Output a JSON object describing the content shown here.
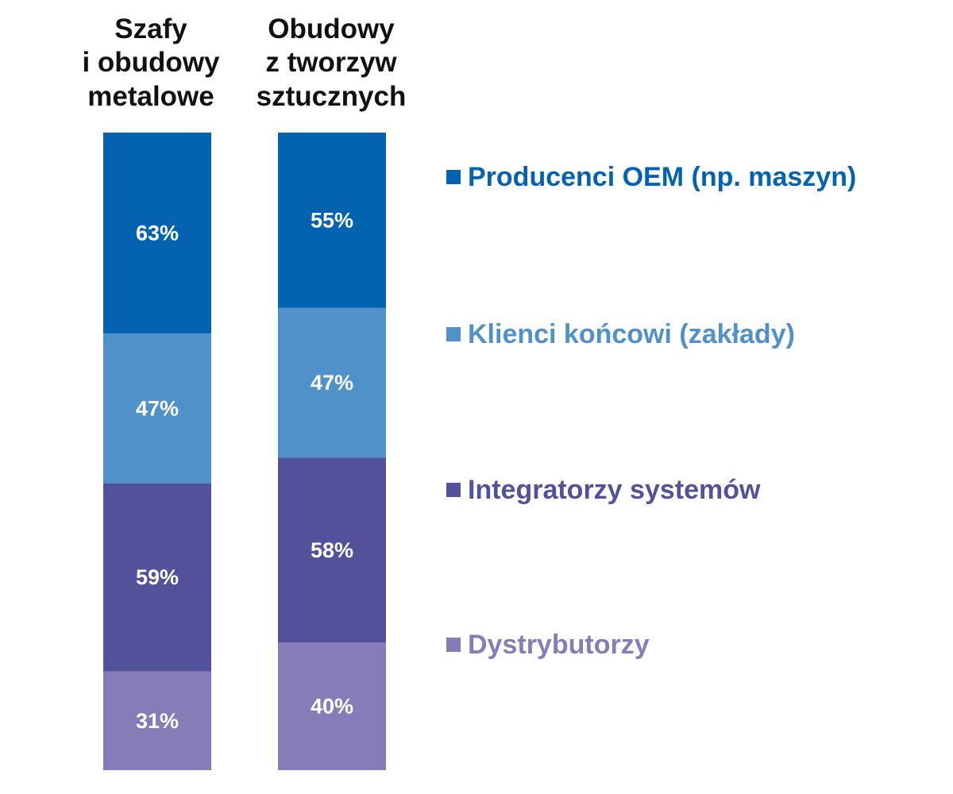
{
  "chart_data": {
    "type": "bar",
    "stacked": true,
    "categories": [
      [
        "Szafy",
        "i obudowy",
        "metalowe"
      ],
      [
        "Obudowy",
        "z tworzyw",
        "sztucznych"
      ]
    ],
    "series": [
      {
        "name": "Producenci OEM (np. maszyn)",
        "values": [
          63,
          55
        ],
        "color": "#0463b0"
      },
      {
        "name": "Klienci końcowi (zakłady)",
        "values": [
          47,
          47
        ],
        "color": "#5191ca"
      },
      {
        "name": "Integratorzy systemów",
        "values": [
          59,
          58
        ],
        "color": "#54519b"
      },
      {
        "name": "Dystrybutorzy",
        "values": [
          31,
          40
        ],
        "color": "#877cb7"
      }
    ],
    "value_suffix": "%",
    "legend_position": "right",
    "grid": false
  }
}
